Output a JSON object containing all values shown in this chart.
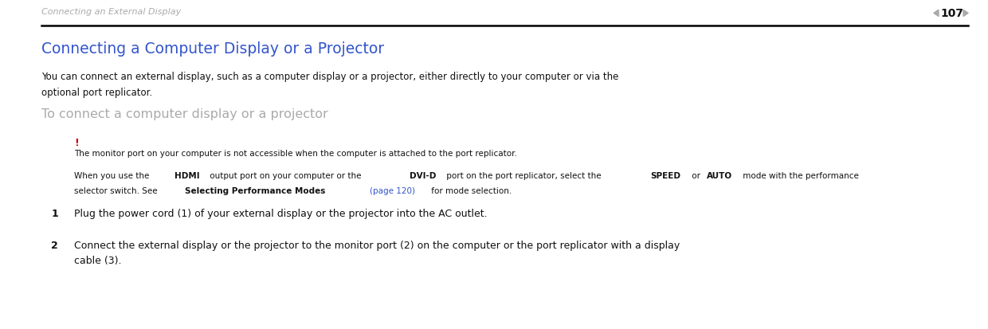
{
  "bg_color": "#ffffff",
  "header_text": "Connecting an External Display",
  "page_number": "107",
  "header_color": "#aaaaaa",
  "header_fontsize": 8.0,
  "rule_color": "#000000",
  "title": "Connecting a Computer Display or a Projector",
  "title_color": "#3355cc",
  "title_fontsize": 13.5,
  "body1_line1": "You can connect an external display, such as a computer display or a projector, either directly to your computer or via the",
  "body1_line2": "optional port replicator.",
  "body1_fontsize": 8.5,
  "body1_color": "#111111",
  "subheading": "To connect a computer display or a projector",
  "subheading_color": "#aaaaaa",
  "subheading_fontsize": 11.5,
  "exclamation": "!",
  "exclamation_color": "#cc0000",
  "exclamation_fontsize": 9,
  "note1": "The monitor port on your computer is not accessible when the computer is attached to the port replicator.",
  "note1_fontsize": 7.5,
  "note1_color": "#111111",
  "note2_line1_parts": [
    {
      "text": "When you use the ",
      "bold": false
    },
    {
      "text": "HDMI",
      "bold": true
    },
    {
      "text": " output port on your computer or the ",
      "bold": false
    },
    {
      "text": "DVI-D",
      "bold": true
    },
    {
      "text": " port on the port replicator, select the ",
      "bold": false
    },
    {
      "text": "SPEED",
      "bold": true
    },
    {
      "text": " or ",
      "bold": false
    },
    {
      "text": "AUTO",
      "bold": true
    },
    {
      "text": " mode with the performance",
      "bold": false
    }
  ],
  "note2_line2_parts": [
    {
      "text": "selector switch. See ",
      "bold": false
    },
    {
      "text": "Selecting Performance Modes ",
      "bold": true
    },
    {
      "text": "(page 120)",
      "bold": false,
      "color": "#3355cc"
    },
    {
      "text": " for mode selection.",
      "bold": false
    }
  ],
  "note2_fontsize": 7.5,
  "note2_color": "#111111",
  "item1_num": "1",
  "item1_text": "Plug the power cord (1) of your external display or the projector into the AC outlet.",
  "item1_fontsize": 9.0,
  "item1_color": "#111111",
  "item2_num": "2",
  "item2_line1": "Connect the external display or the projector to the monitor port (2) on the computer or the port replicator with a display",
  "item2_line2": "cable (3).",
  "item2_fontsize": 9.0,
  "item2_color": "#111111",
  "lm": 0.042,
  "im": 0.075,
  "nm": 0.052
}
